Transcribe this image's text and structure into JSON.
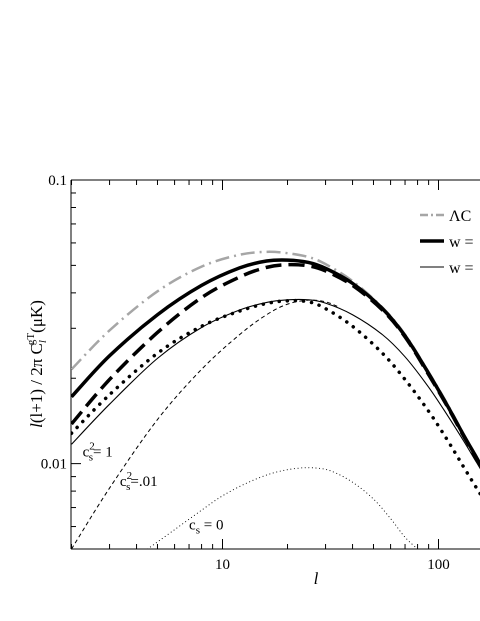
{
  "chart_data": {
    "type": "line",
    "xscale": "log",
    "yscale": "log",
    "xlim": [
      2,
      160
    ],
    "ylim": [
      0.005,
      0.1
    ],
    "xlabel": "l",
    "ylabel": "l(l+1) / 2π C_l^gT (μK)",
    "ylabel_parts": {
      "pre": "l",
      "mid": "(l+1) / 2π C",
      "sub": "l",
      "sup": "gT",
      "post": "(μK)"
    },
    "x_ticks": [
      {
        "value": 10,
        "label": "10"
      },
      {
        "value": 100,
        "label": "100"
      }
    ],
    "y_ticks": [
      {
        "value": 0.1,
        "label": "0.1"
      },
      {
        "value": 0.01,
        "label": "0.01"
      }
    ],
    "legend_position": "top-right",
    "legend": [
      {
        "label": "ΛC",
        "color": "#a6a6a6",
        "dash": "dashdot",
        "width": 2.5
      },
      {
        "label": "w =",
        "color": "#000000",
        "dash": "solid",
        "width": 3.5
      },
      {
        "label": "w =",
        "color": "#000000",
        "dash": "solid",
        "width": 1.1
      }
    ],
    "annotations": [
      {
        "base": "c",
        "sub": "s",
        "sup": "2",
        "rest": "= 1",
        "x": 2.25,
        "y": 0.01058
      },
      {
        "base": "c",
        "sub": "s",
        "sup": "2",
        "rest": "=.01",
        "x": 3.35,
        "y": 0.00835
      },
      {
        "base": "c",
        "sub": "s",
        "sup": "",
        "rest": "= 0",
        "x": 7.0,
        "y": 0.00585
      }
    ],
    "series": [
      {
        "color": "#a6a6a6",
        "dash": "dashdot",
        "width": 2.5,
        "x": [
          2,
          3,
          5,
          8,
          12,
          16,
          20,
          25,
          30,
          40,
          55,
          70,
          90,
          110,
          130,
          150,
          160
        ],
        "y": [
          0.0215,
          0.0295,
          0.0405,
          0.0495,
          0.0545,
          0.0558,
          0.0552,
          0.0535,
          0.0505,
          0.044,
          0.0355,
          0.0285,
          0.021,
          0.0162,
          0.0128,
          0.0105,
          0.0096
        ]
      },
      {
        "color": "#000000",
        "dash": "solid",
        "width": 3.5,
        "x": [
          2,
          3,
          5,
          8,
          12,
          16,
          20,
          25,
          30,
          40,
          55,
          70,
          90,
          110,
          130,
          150,
          160
        ],
        "y": [
          0.0172,
          0.024,
          0.0335,
          0.0425,
          0.049,
          0.0518,
          0.0522,
          0.0512,
          0.0488,
          0.0432,
          0.0352,
          0.0282,
          0.0208,
          0.016,
          0.0127,
          0.0105,
          0.0096
        ]
      },
      {
        "color": "#000000",
        "dash": "dashed",
        "width": 3.5,
        "x": [
          2,
          3,
          5,
          8,
          12,
          16,
          20,
          25,
          30,
          40,
          55,
          70,
          90,
          110,
          130,
          150,
          160
        ],
        "y": [
          0.0138,
          0.0198,
          0.029,
          0.0385,
          0.0455,
          0.0492,
          0.0503,
          0.0498,
          0.0478,
          0.0425,
          0.0348,
          0.028,
          0.0206,
          0.0159,
          0.0126,
          0.0104,
          0.0095
        ]
      },
      {
        "color": "#000000",
        "dash": "dotted",
        "width": 3.5,
        "x": [
          2,
          3,
          5,
          8,
          12,
          16,
          20,
          25,
          30,
          40,
          55,
          70,
          90,
          110,
          130,
          150,
          160
        ],
        "y": [
          0.0128,
          0.0175,
          0.0245,
          0.0305,
          0.0345,
          0.0367,
          0.0375,
          0.0372,
          0.0352,
          0.0305,
          0.0245,
          0.0198,
          0.0153,
          0.0121,
          0.0098,
          0.0082,
          0.0076
        ]
      },
      {
        "color": "#000000",
        "dash": "solid",
        "width": 1.1,
        "x": [
          2,
          3,
          5,
          8,
          12,
          16,
          20,
          25,
          30,
          40,
          55,
          70,
          90,
          110,
          130,
          150,
          160
        ],
        "y": [
          0.0117,
          0.0162,
          0.0235,
          0.0302,
          0.0348,
          0.037,
          0.0378,
          0.0378,
          0.0368,
          0.0335,
          0.0285,
          0.0238,
          0.0186,
          0.0148,
          0.0121,
          0.0101,
          0.0093
        ]
      },
      {
        "color": "#000000",
        "dash": "shortdash",
        "width": 1.0,
        "x": [
          2,
          3,
          5,
          8,
          12,
          16,
          20,
          25,
          30,
          35
        ],
        "y": [
          0.005,
          0.0082,
          0.0143,
          0.0215,
          0.0285,
          0.0335,
          0.0365,
          0.0377,
          0.0372,
          0.0355
        ]
      },
      {
        "color": "#000000",
        "dash": "finedot",
        "width": 1.0,
        "x": [
          4.5,
          6,
          8,
          10,
          13,
          17,
          22,
          27,
          32,
          40,
          50,
          60,
          70,
          80
        ],
        "y": [
          0.005,
          0.00585,
          0.00685,
          0.0077,
          0.00855,
          0.00925,
          0.00962,
          0.00965,
          0.0094,
          0.0086,
          0.0075,
          0.0064,
          0.0055,
          0.005
        ]
      }
    ]
  }
}
